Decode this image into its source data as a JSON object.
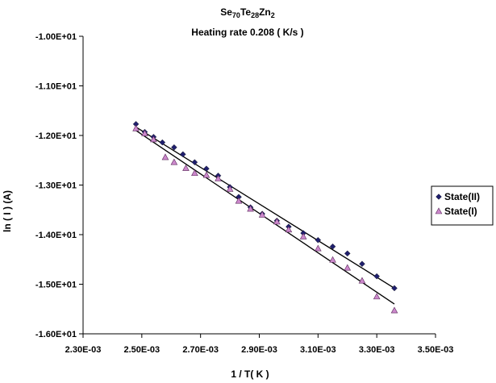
{
  "chart_data": {
    "type": "scatter",
    "title": {
      "main": "Se",
      "parts": [
        {
          "text": "Se",
          "sub": false
        },
        {
          "text": "70",
          "sub": true
        },
        {
          "text": "Te",
          "sub": false
        },
        {
          "text": "28",
          "sub": true
        },
        {
          "text": "Zn",
          "sub": false
        },
        {
          "text": "2",
          "sub": true
        }
      ]
    },
    "subtitle": "Heating rate 0.208 ( K/s )",
    "xlabel": "1 / T( K )",
    "ylabel": "ln ( I ) (A)",
    "xlim": [
      0.0023,
      0.0035
    ],
    "ylim": [
      -16.0,
      -10.0
    ],
    "x_ticks": [
      0.0023,
      0.0025,
      0.0027,
      0.0029,
      0.0031,
      0.0033,
      0.0035
    ],
    "x_tick_labels": [
      "2.30E-03",
      "2.50E-03",
      "2.70E-03",
      "2.90E-03",
      "3.10E-03",
      "3.30E-03",
      "3.50E-03"
    ],
    "y_ticks": [
      -10.0,
      -11.0,
      -12.0,
      -13.0,
      -14.0,
      -15.0,
      -16.0
    ],
    "y_tick_labels": [
      "-1.00E+01",
      "-1.10E+01",
      "-1.20E+01",
      "-1.30E+01",
      "-1.40E+01",
      "-1.50E+01",
      "-1.60E+01"
    ],
    "grid": false,
    "legend_position": "right",
    "series": [
      {
        "name": "State(II)",
        "marker": "diamond",
        "color": "#1f1f6e",
        "x": [
          0.00248,
          0.00251,
          0.00254,
          0.00257,
          0.00261,
          0.00264,
          0.00268,
          0.00272,
          0.00276,
          0.0028,
          0.00283,
          0.00287,
          0.00291,
          0.00296,
          0.003,
          0.00305,
          0.0031,
          0.00315,
          0.0032,
          0.00325,
          0.0033,
          0.00336
        ],
        "y": [
          -11.77,
          -11.93,
          -12.03,
          -12.14,
          -12.24,
          -12.38,
          -12.54,
          -12.67,
          -12.81,
          -13.04,
          -13.24,
          -13.45,
          -13.58,
          -13.72,
          -13.84,
          -13.97,
          -14.11,
          -14.24,
          -14.38,
          -14.59,
          -14.84,
          -15.08
        ]
      },
      {
        "name": "State(I)",
        "marker": "triangle",
        "color": "#cc88cc",
        "x": [
          0.00248,
          0.00251,
          0.00254,
          0.00258,
          0.00261,
          0.00265,
          0.00268,
          0.00272,
          0.00276,
          0.0028,
          0.00283,
          0.00287,
          0.00291,
          0.00296,
          0.003,
          0.00305,
          0.0031,
          0.00315,
          0.0032,
          0.00325,
          0.0033,
          0.00336
        ],
        "y": [
          -11.86,
          -11.96,
          -12.08,
          -12.44,
          -12.54,
          -12.66,
          -12.76,
          -12.8,
          -12.87,
          -13.08,
          -13.32,
          -13.48,
          -13.6,
          -13.74,
          -13.9,
          -14.04,
          -14.28,
          -14.51,
          -14.67,
          -14.93,
          -15.25,
          -15.53
        ]
      }
    ],
    "trendlines": [
      {
        "series": "State(II)",
        "x": [
          0.00248,
          0.00336
        ],
        "y": [
          -11.83,
          -15.08
        ]
      },
      {
        "series": "State(I)",
        "x": [
          0.00248,
          0.00336
        ],
        "y": [
          -11.9,
          -15.4
        ]
      }
    ]
  }
}
